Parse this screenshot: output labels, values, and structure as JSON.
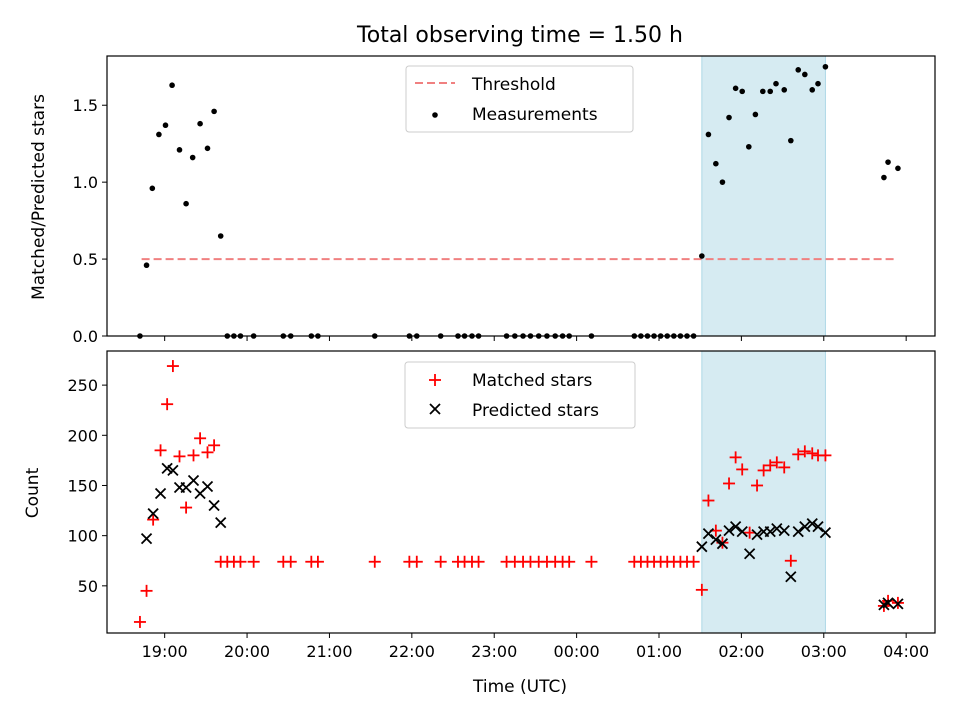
{
  "title": "Total observing time = 1.50 h",
  "xlabel": "Time (UTC)",
  "x_ticks": [
    "19:00",
    "20:00",
    "21:00",
    "22:00",
    "23:00",
    "00:00",
    "01:00",
    "02:00",
    "03:00",
    "04:00"
  ],
  "colors": {
    "threshold": "#f08080",
    "measurements": "#000000",
    "matched": "#ff0000",
    "predicted": "#000000",
    "highlight": "#add8e6"
  },
  "chart_data": [
    {
      "type": "scatter",
      "ylabel": "Matched/Predicted stars",
      "x_unit": "hours after 18:00 UTC",
      "xlim": [
        0.3,
        10.35
      ],
      "ylim": [
        0,
        1.82
      ],
      "y_ticks": [
        "0.0",
        "0.5",
        "1.0",
        "1.5"
      ],
      "y_tick_values": [
        0,
        0.5,
        1.0,
        1.5
      ],
      "highlight_span": [
        7.52,
        9.02
      ],
      "legend": {
        "placement": "upper center",
        "entries": [
          "Threshold",
          "Measurements"
        ]
      },
      "threshold": {
        "name": "Threshold",
        "value": 0.5,
        "x_range": [
          0.72,
          9.88
        ]
      },
      "series": [
        {
          "name": "Measurements",
          "points": [
            [
              0.7,
              0.0
            ],
            [
              0.78,
              0.46
            ],
            [
              0.85,
              0.96
            ],
            [
              0.93,
              1.31
            ],
            [
              1.01,
              1.37
            ],
            [
              1.09,
              1.63
            ],
            [
              1.18,
              1.21
            ],
            [
              1.26,
              0.86
            ],
            [
              1.34,
              1.16
            ],
            [
              1.43,
              1.38
            ],
            [
              1.52,
              1.22
            ],
            [
              1.6,
              1.46
            ],
            [
              1.68,
              0.65
            ],
            [
              1.76,
              0.0
            ],
            [
              1.84,
              0.0
            ],
            [
              1.92,
              0.0
            ],
            [
              2.08,
              0.0
            ],
            [
              2.44,
              0.0
            ],
            [
              2.53,
              0.0
            ],
            [
              2.78,
              0.0
            ],
            [
              2.86,
              0.0
            ],
            [
              3.55,
              0.0
            ],
            [
              3.97,
              0.0
            ],
            [
              4.06,
              0.0
            ],
            [
              4.35,
              0.0
            ],
            [
              4.56,
              0.0
            ],
            [
              4.64,
              0.0
            ],
            [
              4.73,
              0.0
            ],
            [
              4.81,
              0.0
            ],
            [
              5.15,
              0.0
            ],
            [
              5.25,
              0.0
            ],
            [
              5.35,
              0.0
            ],
            [
              5.44,
              0.0
            ],
            [
              5.54,
              0.0
            ],
            [
              5.64,
              0.0
            ],
            [
              5.74,
              0.0
            ],
            [
              5.83,
              0.0
            ],
            [
              5.91,
              0.0
            ],
            [
              6.18,
              0.0
            ],
            [
              6.7,
              0.0
            ],
            [
              6.78,
              0.0
            ],
            [
              6.86,
              0.0
            ],
            [
              6.94,
              0.0
            ],
            [
              7.02,
              0.0
            ],
            [
              7.1,
              0.0
            ],
            [
              7.18,
              0.0
            ],
            [
              7.26,
              0.0
            ],
            [
              7.34,
              0.0
            ],
            [
              7.42,
              0.0
            ],
            [
              7.52,
              0.52
            ],
            [
              7.6,
              1.31
            ],
            [
              7.69,
              1.12
            ],
            [
              7.77,
              1.0
            ],
            [
              7.85,
              1.42
            ],
            [
              7.93,
              1.61
            ],
            [
              8.01,
              1.59
            ],
            [
              8.09,
              1.23
            ],
            [
              8.17,
              1.44
            ],
            [
              8.26,
              1.59
            ],
            [
              8.35,
              1.59
            ],
            [
              8.42,
              1.64
            ],
            [
              8.52,
              1.6
            ],
            [
              8.6,
              1.27
            ],
            [
              8.69,
              1.73
            ],
            [
              8.77,
              1.7
            ],
            [
              8.86,
              1.6
            ],
            [
              8.93,
              1.64
            ],
            [
              9.02,
              1.75
            ],
            [
              9.73,
              1.03
            ],
            [
              9.78,
              1.13
            ],
            [
              9.9,
              1.09
            ]
          ]
        }
      ]
    },
    {
      "type": "scatter",
      "ylabel": "Count",
      "x_unit": "hours after 18:00 UTC",
      "xlim": [
        0.3,
        10.35
      ],
      "ylim": [
        3,
        284
      ],
      "y_ticks": [
        "50",
        "100",
        "150",
        "200",
        "250"
      ],
      "y_tick_values": [
        50,
        100,
        150,
        200,
        250
      ],
      "highlight_span": [
        7.52,
        9.02
      ],
      "legend": {
        "placement": "upper center",
        "entries": [
          "Matched stars",
          "Predicted stars"
        ]
      },
      "series": [
        {
          "name": "Matched stars",
          "marker": "plus",
          "points": [
            [
              0.7,
              14
            ],
            [
              0.78,
              45
            ],
            [
              0.86,
              116
            ],
            [
              0.95,
              185
            ],
            [
              1.03,
              231
            ],
            [
              1.1,
              269
            ],
            [
              1.18,
              179
            ],
            [
              1.26,
              128
            ],
            [
              1.35,
              180
            ],
            [
              1.43,
              197
            ],
            [
              1.52,
              183
            ],
            [
              1.6,
              190
            ],
            [
              1.68,
              74
            ],
            [
              1.76,
              74
            ],
            [
              1.84,
              74
            ],
            [
              1.92,
              74
            ],
            [
              2.08,
              74
            ],
            [
              2.44,
              74
            ],
            [
              2.53,
              74
            ],
            [
              2.78,
              74
            ],
            [
              2.86,
              74
            ],
            [
              3.55,
              74
            ],
            [
              3.97,
              74
            ],
            [
              4.06,
              74
            ],
            [
              4.35,
              74
            ],
            [
              4.56,
              74
            ],
            [
              4.64,
              74
            ],
            [
              4.73,
              74
            ],
            [
              4.81,
              74
            ],
            [
              5.15,
              74
            ],
            [
              5.25,
              74
            ],
            [
              5.35,
              74
            ],
            [
              5.44,
              74
            ],
            [
              5.54,
              74
            ],
            [
              5.64,
              74
            ],
            [
              5.74,
              74
            ],
            [
              5.83,
              74
            ],
            [
              5.91,
              74
            ],
            [
              6.18,
              74
            ],
            [
              6.7,
              74
            ],
            [
              6.78,
              74
            ],
            [
              6.86,
              74
            ],
            [
              6.94,
              74
            ],
            [
              7.02,
              74
            ],
            [
              7.1,
              74
            ],
            [
              7.18,
              74
            ],
            [
              7.26,
              74
            ],
            [
              7.34,
              74
            ],
            [
              7.42,
              74
            ],
            [
              7.52,
              46
            ],
            [
              7.6,
              135
            ],
            [
              7.69,
              105
            ],
            [
              7.77,
              93
            ],
            [
              7.85,
              152
            ],
            [
              7.93,
              178
            ],
            [
              8.01,
              166
            ],
            [
              8.1,
              103
            ],
            [
              8.19,
              150
            ],
            [
              8.27,
              165
            ],
            [
              8.35,
              170
            ],
            [
              8.43,
              173
            ],
            [
              8.52,
              168
            ],
            [
              8.6,
              75
            ],
            [
              8.69,
              181
            ],
            [
              8.77,
              184
            ],
            [
              8.86,
              182
            ],
            [
              8.93,
              180
            ],
            [
              9.02,
              180
            ],
            [
              9.73,
              30
            ],
            [
              9.78,
              35
            ],
            [
              9.9,
              33
            ]
          ]
        },
        {
          "name": "Predicted stars",
          "marker": "x",
          "points": [
            [
              0.78,
              97
            ],
            [
              0.86,
              122
            ],
            [
              0.95,
              142
            ],
            [
              1.03,
              167
            ],
            [
              1.1,
              165
            ],
            [
              1.18,
              148
            ],
            [
              1.26,
              148
            ],
            [
              1.35,
              155
            ],
            [
              1.43,
              142
            ],
            [
              1.52,
              149
            ],
            [
              1.6,
              130
            ],
            [
              1.68,
              113
            ],
            [
              7.52,
              89
            ],
            [
              7.6,
              102
            ],
            [
              7.69,
              96
            ],
            [
              7.77,
              92
            ],
            [
              7.85,
              105
            ],
            [
              7.93,
              109
            ],
            [
              8.01,
              104
            ],
            [
              8.1,
              82
            ],
            [
              8.19,
              101
            ],
            [
              8.27,
              104
            ],
            [
              8.35,
              104
            ],
            [
              8.43,
              107
            ],
            [
              8.52,
              105
            ],
            [
              8.6,
              59
            ],
            [
              8.69,
              104
            ],
            [
              8.77,
              109
            ],
            [
              8.86,
              112
            ],
            [
              8.93,
              109
            ],
            [
              9.02,
              103
            ],
            [
              9.73,
              31
            ],
            [
              9.78,
              33
            ],
            [
              9.9,
              32
            ]
          ]
        }
      ]
    }
  ]
}
